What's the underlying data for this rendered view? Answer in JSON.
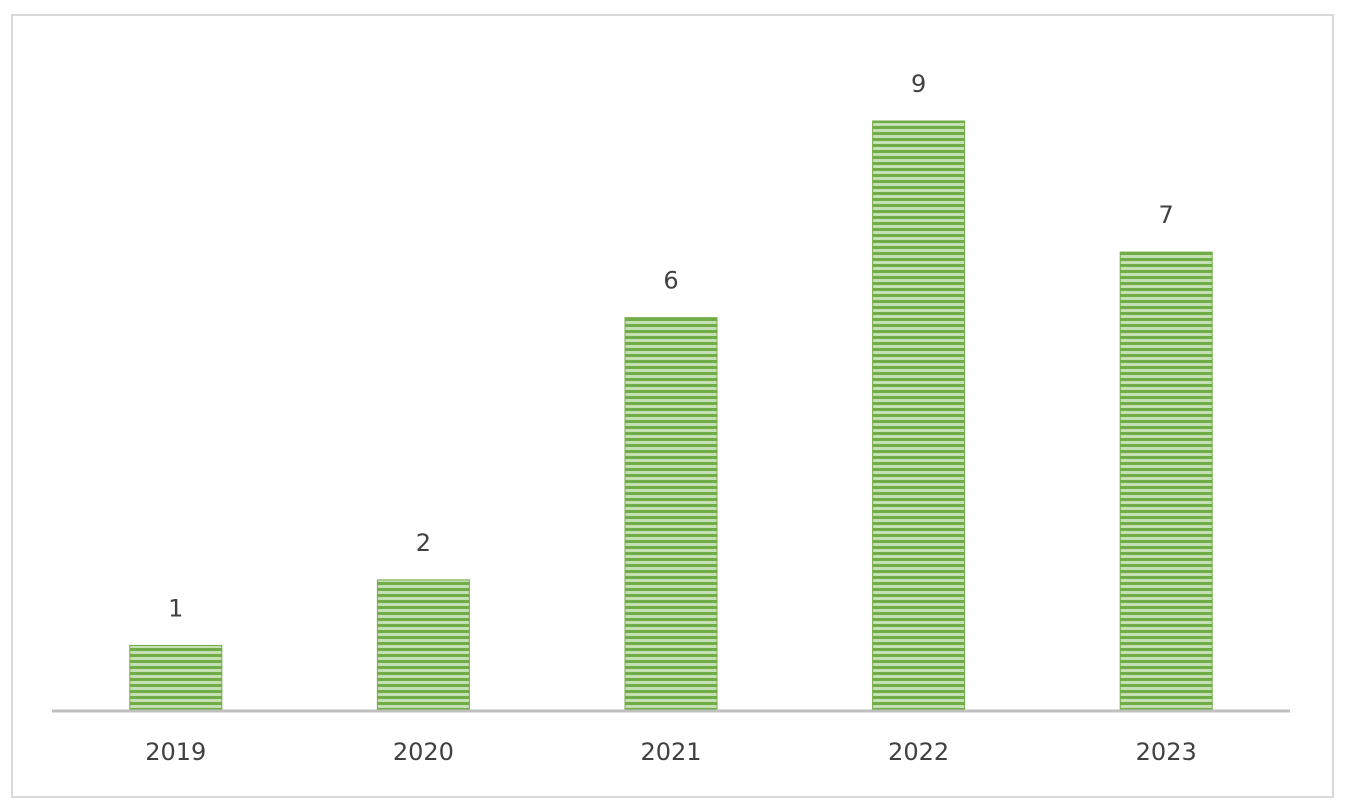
{
  "chart_data": {
    "type": "bar",
    "categories": [
      "2019",
      "2020",
      "2021",
      "2022",
      "2023"
    ],
    "values": [
      1,
      2,
      6,
      9,
      7
    ],
    "color": "#70ad47"
  }
}
